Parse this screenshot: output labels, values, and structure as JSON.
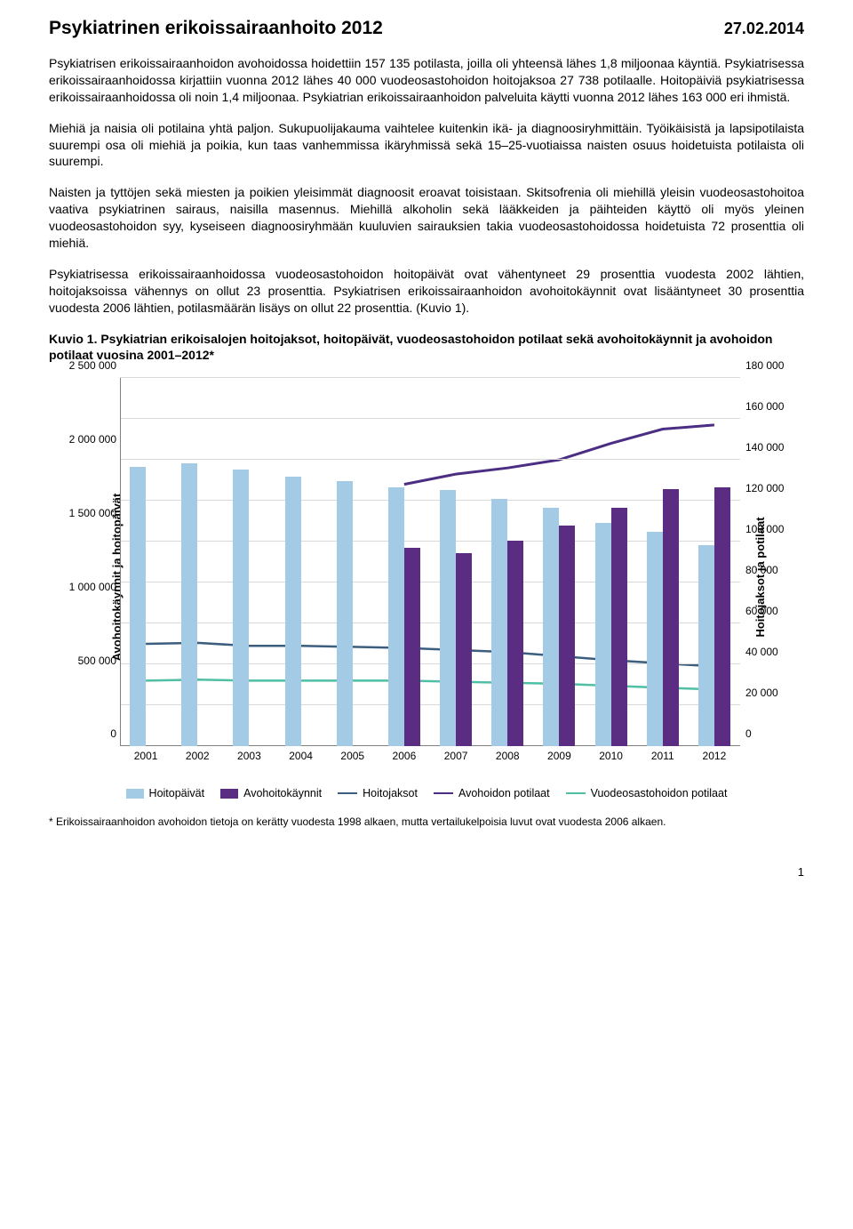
{
  "header": {
    "title": "Psykiatrinen erikoissairaanhoito 2012",
    "date": "27.02.2014"
  },
  "paragraphs": {
    "p1": "Psykiatrisen erikoissairaanhoidon avohoidossa hoidettiin 157 135 potilasta, joilla oli yhteensä lähes 1,8 miljoonaa käyntiä. Psykiatrisessa erikoissairaanhoidossa kirjattiin vuonna 2012 lähes 40 000 vuodeosastohoidon hoitojaksoa 27 738 potilaalle. Hoitopäiviä psykiatrisessa erikoissairaanhoidossa oli noin 1,4 miljoonaa. Psykiatrian erikoissairaanhoidon palveluita käytti vuonna 2012 lähes 163 000 eri ihmistä.",
    "p2": "Miehiä ja naisia oli potilaina yhtä paljon. Sukupuolijakauma vaihtelee kuitenkin ikä- ja diagnoosiryhmittäin. Työikäisistä ja lapsipotilaista suurempi osa oli miehiä ja poikia, kun taas vanhemmissa ikäryhmissä sekä 15–25-vuotiaissa naisten osuus hoidetuista potilaista oli suurempi.",
    "p3": "Naisten ja tyttöjen sekä miesten ja poikien yleisimmät diagnoosit eroavat toisistaan. Skitsofrenia oli miehillä yleisin vuodeosastohoitoa vaativa psykiatrinen sairaus, naisilla masennus. Miehillä alkoholin sekä lääkkeiden ja päihteiden käyttö oli myös yleinen vuodeosastohoidon syy, kyseiseen diagnoosiryhmään kuuluvien sairauksien takia vuodeosastohoidossa hoidetuista 72 prosenttia oli miehiä.",
    "p4": "Psykiatrisessa erikoissairaanhoidossa vuodeosastohoidon hoitopäivät ovat vähentyneet 29 prosenttia vuodesta 2002 lähtien, hoitojaksoissa vähennys on ollut 23 prosenttia. Psykiatrisen erikoissairaanhoidon avohoitokäynnit ovat lisääntyneet 30 prosenttia vuodesta 2006 lähtien, potilasmäärän lisäys on ollut 22 prosenttia. (Kuvio 1)."
  },
  "figure": {
    "title": "Kuvio 1. Psykiatrian erikoisalojen hoitojaksot, hoitopäivät, vuodeosastohoidon potilaat sekä avohoitokäynnit ja avohoidon potilaat vuosina 2001–2012*"
  },
  "chart": {
    "type": "combo-bar-line-dual-axis",
    "background_color": "#ffffff",
    "grid_color": "#d9d9d9",
    "axis_color": "#808080",
    "y_left": {
      "label": "Avohoitokäynnit ja hoitopäivät",
      "min": 0,
      "max": 2500000,
      "step": 500000,
      "ticks": [
        "0",
        "500 000",
        "1 000 000",
        "1 500 000",
        "2 000 000",
        "2 500 000"
      ],
      "label_fontsize": 13
    },
    "y_right": {
      "label": "Hoitojaksot ja potilaat",
      "min": 0,
      "max": 180000,
      "step": 20000,
      "ticks": [
        "0",
        "20 000",
        "40 000",
        "60 000",
        "80 000",
        "100 000",
        "120 000",
        "140 000",
        "160 000",
        "180 000"
      ],
      "label_fontsize": 13
    },
    "categories": [
      "2001",
      "2002",
      "2003",
      "2004",
      "2005",
      "2006",
      "2007",
      "2008",
      "2009",
      "2010",
      "2011",
      "2012"
    ],
    "series": {
      "hoitopaivat": {
        "label": "Hoitopäivät",
        "type": "bar",
        "axis": "left",
        "color": "#a3cbe6",
        "values": [
          1900000,
          1920000,
          1880000,
          1830000,
          1800000,
          1760000,
          1740000,
          1680000,
          1620000,
          1520000,
          1460000,
          1370000
        ]
      },
      "avohoitokaynnit": {
        "label": "Avohoitokäynnit",
        "type": "bar",
        "axis": "left",
        "color": "#5a2d82",
        "values": [
          null,
          null,
          null,
          null,
          null,
          1350000,
          1310000,
          1400000,
          1500000,
          1620000,
          1750000,
          1760000
        ]
      },
      "hoitojaksot": {
        "label": "Hoitojaksot",
        "type": "line",
        "axis": "right",
        "color": "#3b5e7e",
        "width": 2.5,
        "values": [
          50000,
          50500,
          49000,
          49000,
          48500,
          48000,
          47000,
          46000,
          44000,
          42000,
          40500,
          39000
        ]
      },
      "avohoidon_potilaat": {
        "label": "Avohoidon potilaat",
        "type": "line",
        "axis": "right",
        "color": "#4b2e83",
        "width": 3,
        "values": [
          null,
          null,
          null,
          null,
          null,
          128000,
          133000,
          136000,
          140000,
          148000,
          155000,
          157000
        ]
      },
      "vuodeosastohoidon_potilaat": {
        "label": "Vuodeosastohoidon potilaat",
        "type": "line",
        "axis": "right",
        "color": "#4fbfa5",
        "width": 2.5,
        "values": [
          32000,
          32500,
          32000,
          32000,
          32000,
          32000,
          31500,
          31000,
          30500,
          29500,
          28500,
          27700
        ]
      }
    },
    "bar_group_width": 0.62,
    "legend": {
      "items": [
        {
          "key": "hoitopaivat",
          "label": "Hoitopäivät",
          "kind": "bar",
          "color": "#a3cbe6"
        },
        {
          "key": "avohoitokaynnit",
          "label": "Avohoitokäynnit",
          "kind": "bar",
          "color": "#5a2d82"
        },
        {
          "key": "hoitojaksot",
          "label": "Hoitojaksot",
          "kind": "line",
          "color": "#3b5e7e"
        },
        {
          "key": "avohoidon_potilaat",
          "label": "Avohoidon potilaat",
          "kind": "line",
          "color": "#4b2e83"
        },
        {
          "key": "vuodeosastohoidon_potilaat",
          "label": "Vuodeosastohoidon potilaat",
          "kind": "line",
          "color": "#4fbfa5"
        }
      ]
    }
  },
  "footnote": "* Erikoissairaanhoidon avohoidon tietoja on kerätty vuodesta 1998 alkaen, mutta vertailukelpoisia luvut ovat vuodesta 2006 alkaen.",
  "page_number": "1"
}
